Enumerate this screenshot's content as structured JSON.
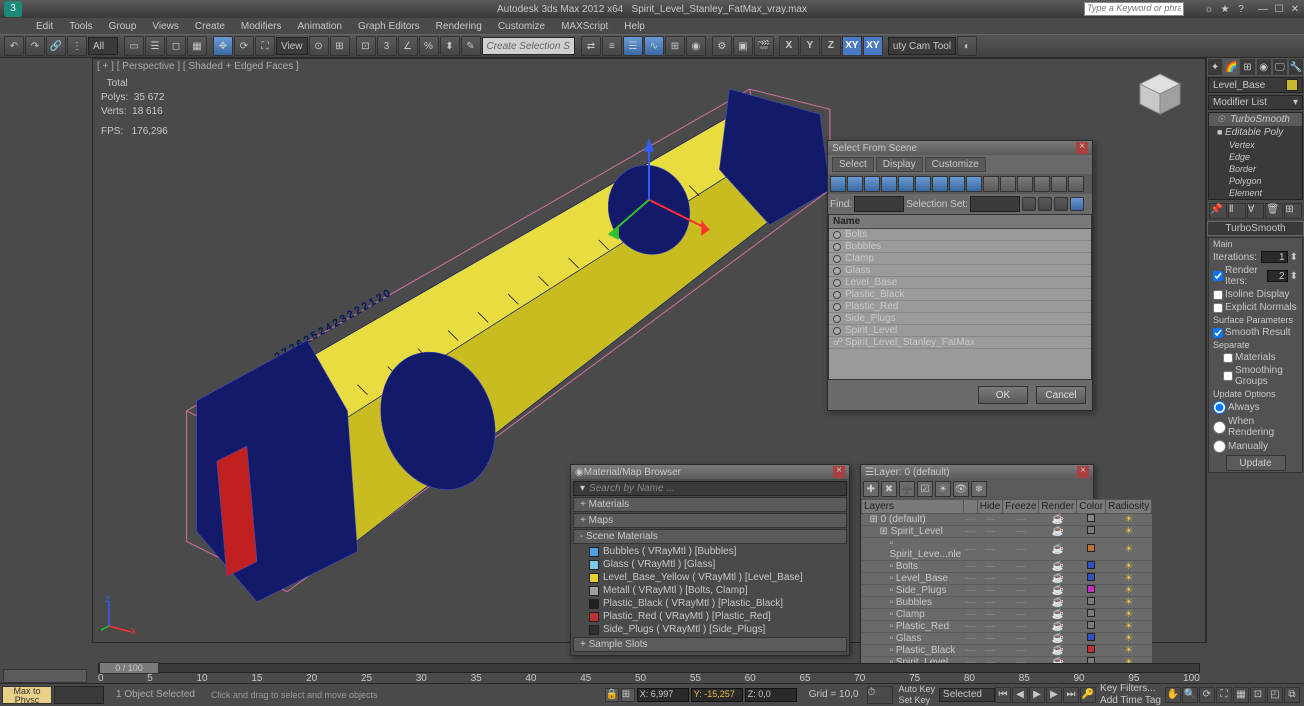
{
  "app": {
    "title_left": "Autodesk 3ds Max  2012 x64",
    "title_right": "Spirit_Level_Stanley_FatMax_vray.max",
    "search_placeholder": "Type a Keyword or phrase"
  },
  "menu": [
    "Edit",
    "Tools",
    "Group",
    "Views",
    "Create",
    "Modifiers",
    "Animation",
    "Graph Editors",
    "Rendering",
    "Customize",
    "MAXScript",
    "Help"
  ],
  "viewport": {
    "label": "[ + ] [ Perspective ] [ Shaded + Edged Faces ]",
    "stats_hdr": "Total",
    "polys_label": "Polys:",
    "polys": "35 672",
    "verts_label": "Verts:",
    "verts": "18 616",
    "fps_label": "FPS:",
    "fps": "176,296"
  },
  "selectFromScene": {
    "title": "Select From Scene",
    "tabs": [
      "Select",
      "Display",
      "Customize"
    ],
    "find_label": "Find:",
    "selset_label": "Selection Set:",
    "name_hdr": "Name",
    "items": [
      "Bolts",
      "Bubbles",
      "Clamp",
      "Glass",
      "Level_Base",
      "Plastic_Black",
      "Plastic_Red",
      "Side_Plugs",
      "Spirit_Level",
      "Spirit_Level_Stanley_FatMax"
    ],
    "ok": "OK",
    "cancel": "Cancel"
  },
  "matBrowser": {
    "title": "Material/Map Browser",
    "search": "Search by Name ...",
    "cats": [
      "+ Materials",
      "+ Maps",
      "- Scene Materials",
      "+ Sample Slots"
    ],
    "scene": [
      {
        "c": "#4aa0e0",
        "n": "Bubbles ( VRayMtl ) [Bubbles]"
      },
      {
        "c": "#80c8e8",
        "n": "Glass ( VRayMtl ) [Glass]"
      },
      {
        "c": "#e8d030",
        "n": "Level_Base_Yellow ( VRayMtl ) [Level_Base]"
      },
      {
        "c": "#a0a0a0",
        "n": "Metall ( VRayMtl ) [Bolts, Clamp]"
      },
      {
        "c": "#202020",
        "n": "Plastic_Black ( VRayMtl ) [Plastic_Black]"
      },
      {
        "c": "#c03030",
        "n": "Plastic_Red ( VRayMtl ) [Plastic_Red]"
      },
      {
        "c": "#303030",
        "n": "Side_Plugs ( VRayMtl ) [Side_Plugs]"
      }
    ]
  },
  "layers": {
    "title": "Layer: 0 (default)",
    "cols": [
      "Layers",
      "",
      "Hide",
      "Freeze",
      "Render",
      "Color",
      "Radiosity"
    ],
    "rows": [
      {
        "n": "0 (default)",
        "ind": 0,
        "c": "#888888"
      },
      {
        "n": "Spirit_Level",
        "ind": 1,
        "c": "#7a7a7a"
      },
      {
        "n": "Spirit_Leve...nle",
        "ind": 2,
        "c": "#c07030"
      },
      {
        "n": "Bolts",
        "ind": 2,
        "c": "#3050c0"
      },
      {
        "n": "Level_Base",
        "ind": 2,
        "c": "#3050c0"
      },
      {
        "n": "Side_Plugs",
        "ind": 2,
        "c": "#c030c0"
      },
      {
        "n": "Bubbles",
        "ind": 2,
        "c": "#7a7a7a"
      },
      {
        "n": "Clamp",
        "ind": 2,
        "c": "#7a7a7a"
      },
      {
        "n": "Plastic_Red",
        "ind": 2,
        "c": "#7a7a7a"
      },
      {
        "n": "Glass",
        "ind": 2,
        "c": "#3050c0"
      },
      {
        "n": "Plastic_Black",
        "ind": 2,
        "c": "#c03030"
      },
      {
        "n": "Spirit_Level",
        "ind": 2,
        "c": "#7a7a7a"
      }
    ]
  },
  "cmd": {
    "obj_name": "Level_Base",
    "modlist": "Modifier List",
    "stack": [
      "TurboSmooth",
      "Editable Poly"
    ],
    "sub": [
      "Vertex",
      "Edge",
      "Border",
      "Polygon",
      "Element"
    ],
    "ts_title": "TurboSmooth",
    "main": "Main",
    "iter_l": "Iterations:",
    "iter": "1",
    "rend_l": "Render Iters:",
    "rend": "2",
    "iso": "Isoline Display",
    "expn": "Explicit Normals",
    "surf": "Surface Parameters",
    "smr": "Smooth Result",
    "sep": "Separate",
    "mats": "Materials",
    "smg": "Smoothing Groups",
    "upd": "Update Options",
    "alw": "Always",
    "whr": "When Rendering",
    "man": "Manually",
    "updbtn": "Update"
  },
  "toolbar": {
    "all": "All",
    "view": "View",
    "csel": "Create Selection S",
    "cam": "uty Cam Tool"
  },
  "axes": [
    "X",
    "Y",
    "Z",
    "XY",
    "XY"
  ],
  "timeline": {
    "thumb": "0 / 100",
    "ticks": [
      "0",
      "5",
      "10",
      "15",
      "20",
      "25",
      "30",
      "35",
      "40",
      "45",
      "50",
      "55",
      "60",
      "65",
      "70",
      "75",
      "80",
      "85",
      "90",
      "95",
      "100"
    ]
  },
  "status": {
    "script": "Max to Physc",
    "sel": "1 Object Selected",
    "hint": "Click and drag to select and move objects",
    "x": "X: 6,997",
    "y": "Y: -15,257",
    "z": "Z: 0,0",
    "grid": "Grid = 10,0",
    "autokey": "Auto Key",
    "setkey": "Set Key",
    "selected": "Selected",
    "keyf": "Key Filters...",
    "addtag": "Add Time Tag"
  }
}
